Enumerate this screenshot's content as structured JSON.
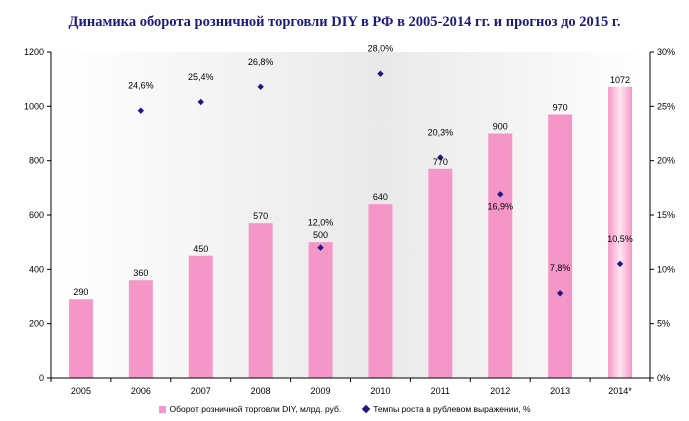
{
  "chart_data": {
    "type": "bar",
    "title": "Динамика оборота розничной торговли DIY в РФ в 2005-2014 гг. и прогноз до 2015 г.",
    "categories": [
      "2005",
      "2006",
      "2007",
      "2008",
      "2009",
      "2010",
      "2011",
      "2012",
      "2013",
      "2014*"
    ],
    "series": [
      {
        "name": "Оборот розничной торговли DIY, млрд. руб.",
        "axis": "left",
        "type": "bar",
        "color": "#f497c8",
        "values": [
          290,
          360,
          450,
          570,
          500,
          640,
          770,
          900,
          970,
          1072
        ],
        "labels": [
          "290",
          "360",
          "450",
          "570",
          "500",
          "640",
          "770",
          "900",
          "970",
          "1072"
        ]
      },
      {
        "name": "Темпы роста в рублевом выражении, %",
        "axis": "right",
        "type": "scatter",
        "color": "#1a1a80",
        "values": [
          null,
          24.6,
          25.4,
          26.8,
          12.0,
          28.0,
          20.3,
          16.9,
          7.8,
          10.5
        ],
        "labels": [
          "",
          "24,6%",
          "25,4%",
          "26,8%",
          "12,0%",
          "28,0%",
          "20,3%",
          "16,9%",
          "7,8%",
          "10,5%"
        ]
      }
    ],
    "ylim_left": [
      0,
      1200
    ],
    "yticks_left": [
      "0",
      "200",
      "400",
      "600",
      "800",
      "1000",
      "1200"
    ],
    "ylim_right": [
      0,
      30
    ],
    "yticks_right": [
      "0%",
      "5%",
      "10%",
      "15%",
      "20%",
      "25%",
      "30%"
    ],
    "grid": false,
    "legend": "bottom"
  }
}
